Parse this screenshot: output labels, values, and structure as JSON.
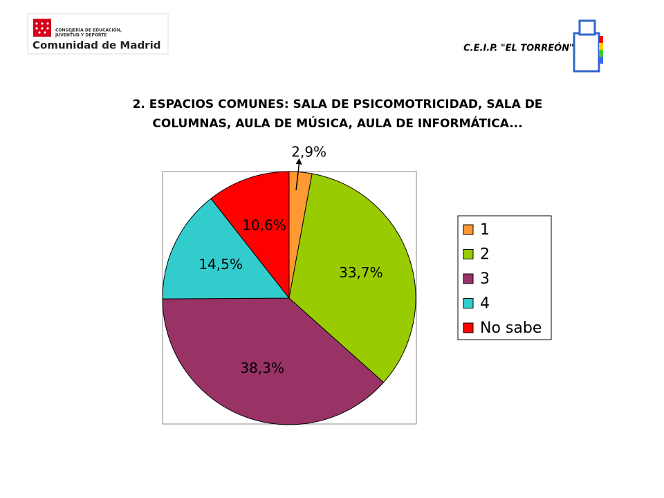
{
  "header": {
    "logo_left": [
      "CONSEJERÍA DE EDUCACIÓN,",
      "JUVENTUD Y DEPORTE",
      "Comunidad de Madrid"
    ],
    "logo_right": "C.E.I.P. \"EL TORREÓN\""
  },
  "chart_data": {
    "type": "pie",
    "title": [
      "2. ESPACIOS COMUNES: SALA DE PSICOMOTRICIDAD, SALA DE",
      "COLUMNAS, AULA DE MÚSICA, AULA DE INFORMÁTICA..."
    ],
    "categories": [
      "1",
      "2",
      "3",
      "4",
      "No sabe"
    ],
    "values": [
      2.9,
      33.7,
      38.3,
      14.5,
      10.6
    ],
    "value_labels": [
      "2,9%",
      "33,7%",
      "38,3%",
      "14,5%",
      "10,6%"
    ],
    "colors": [
      "#ff9933",
      "#99cc00",
      "#993366",
      "#33cccc",
      "#ff0000"
    ],
    "legend": "right"
  }
}
